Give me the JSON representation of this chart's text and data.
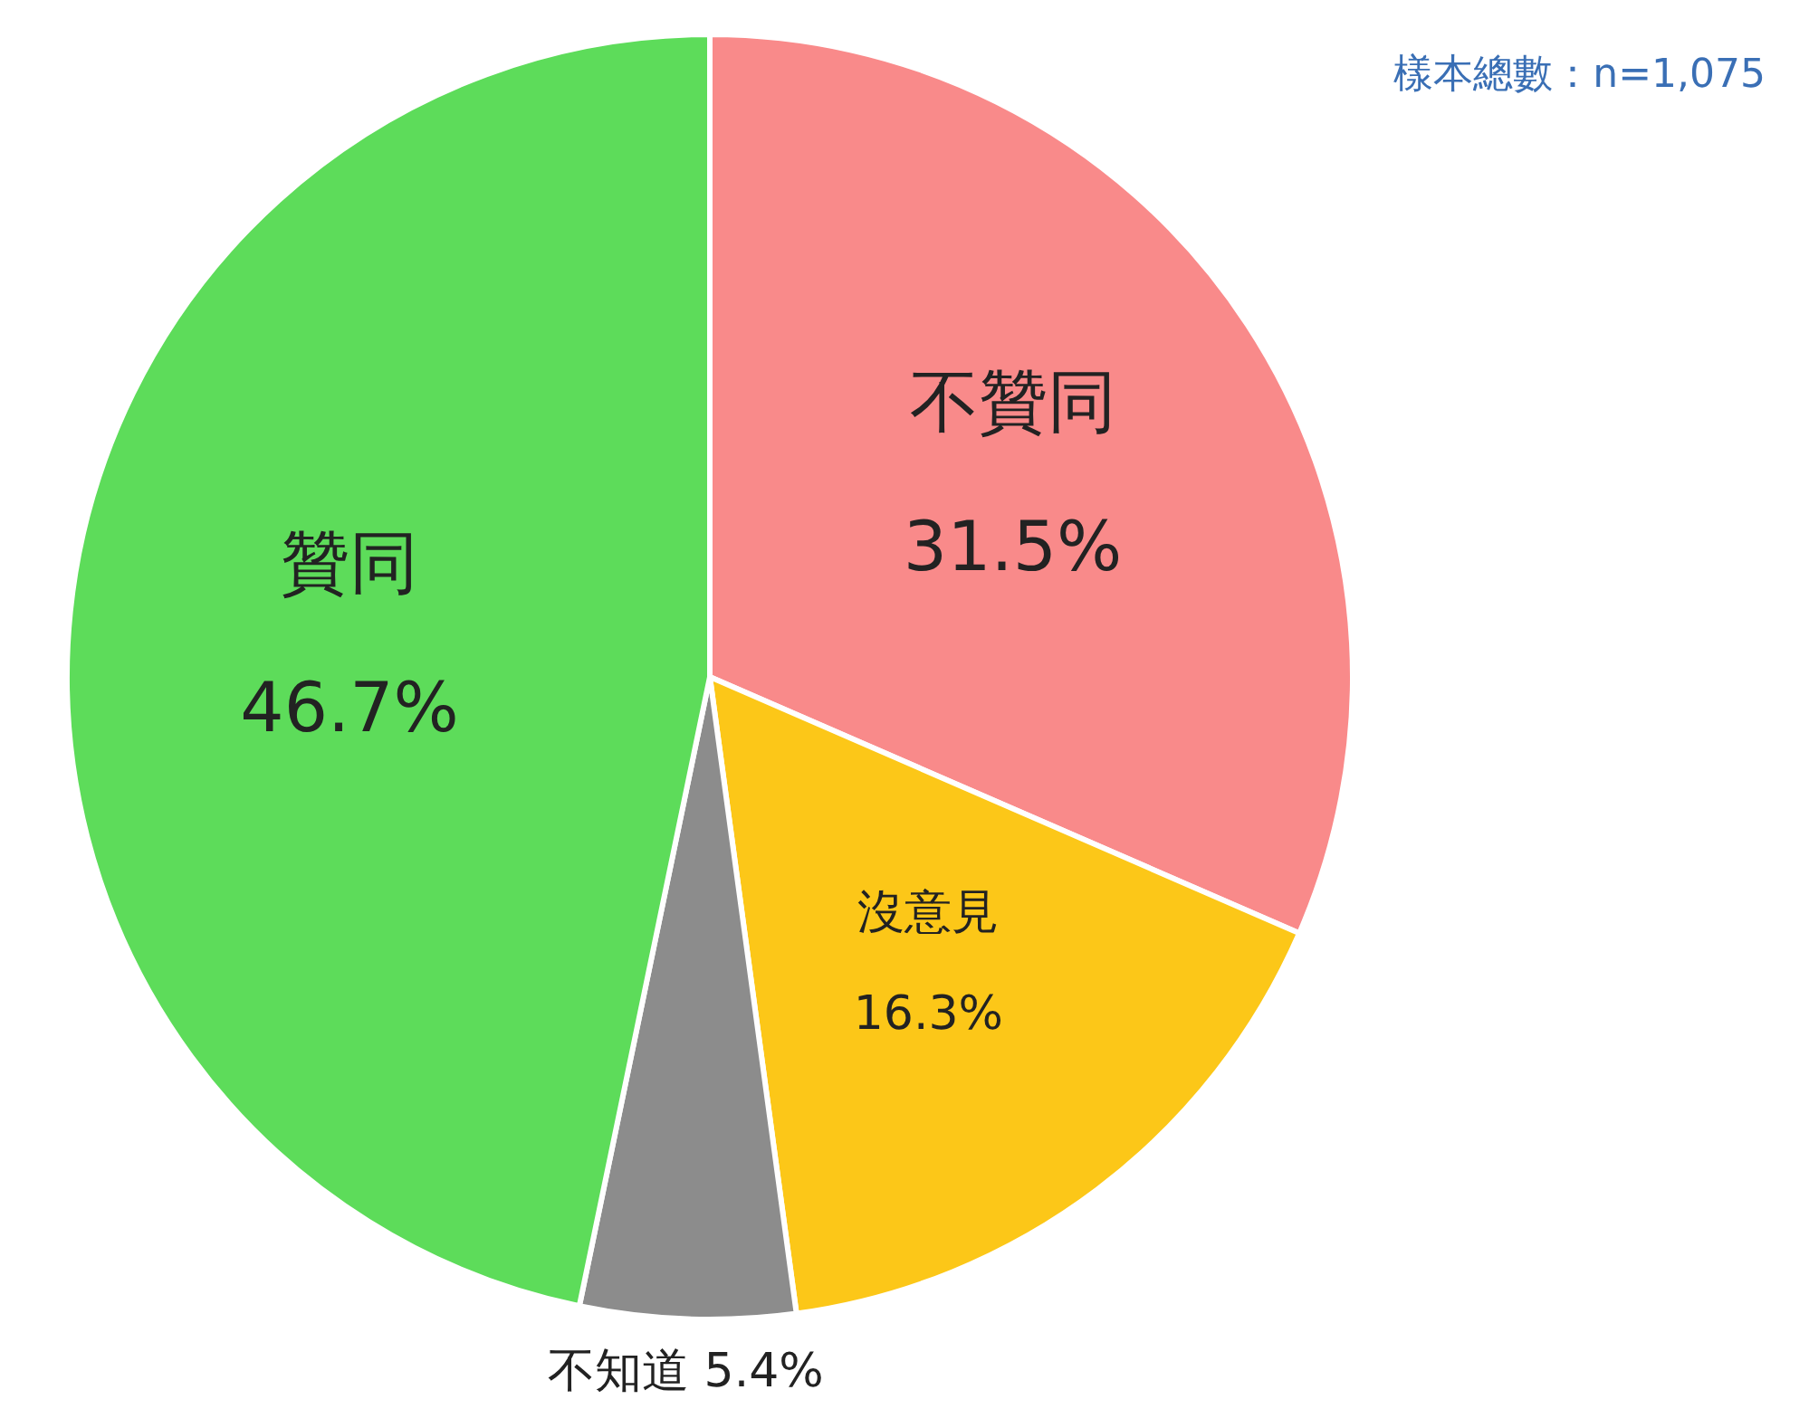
{
  "chart_data": {
    "type": "pie",
    "categories": [
      "不贊同",
      "沒意見",
      "不知道",
      "贊同"
    ],
    "values": [
      31.5,
      16.3,
      5.4,
      46.7
    ],
    "value_labels": [
      "31.5%",
      "16.3%",
      "5.4%",
      "46.7%"
    ],
    "colors": [
      "#f98a8a",
      "#fcc718",
      "#8c8c8c",
      "#5ddc5a"
    ],
    "annotations": [
      "樣本總數：n=1,075"
    ]
  }
}
